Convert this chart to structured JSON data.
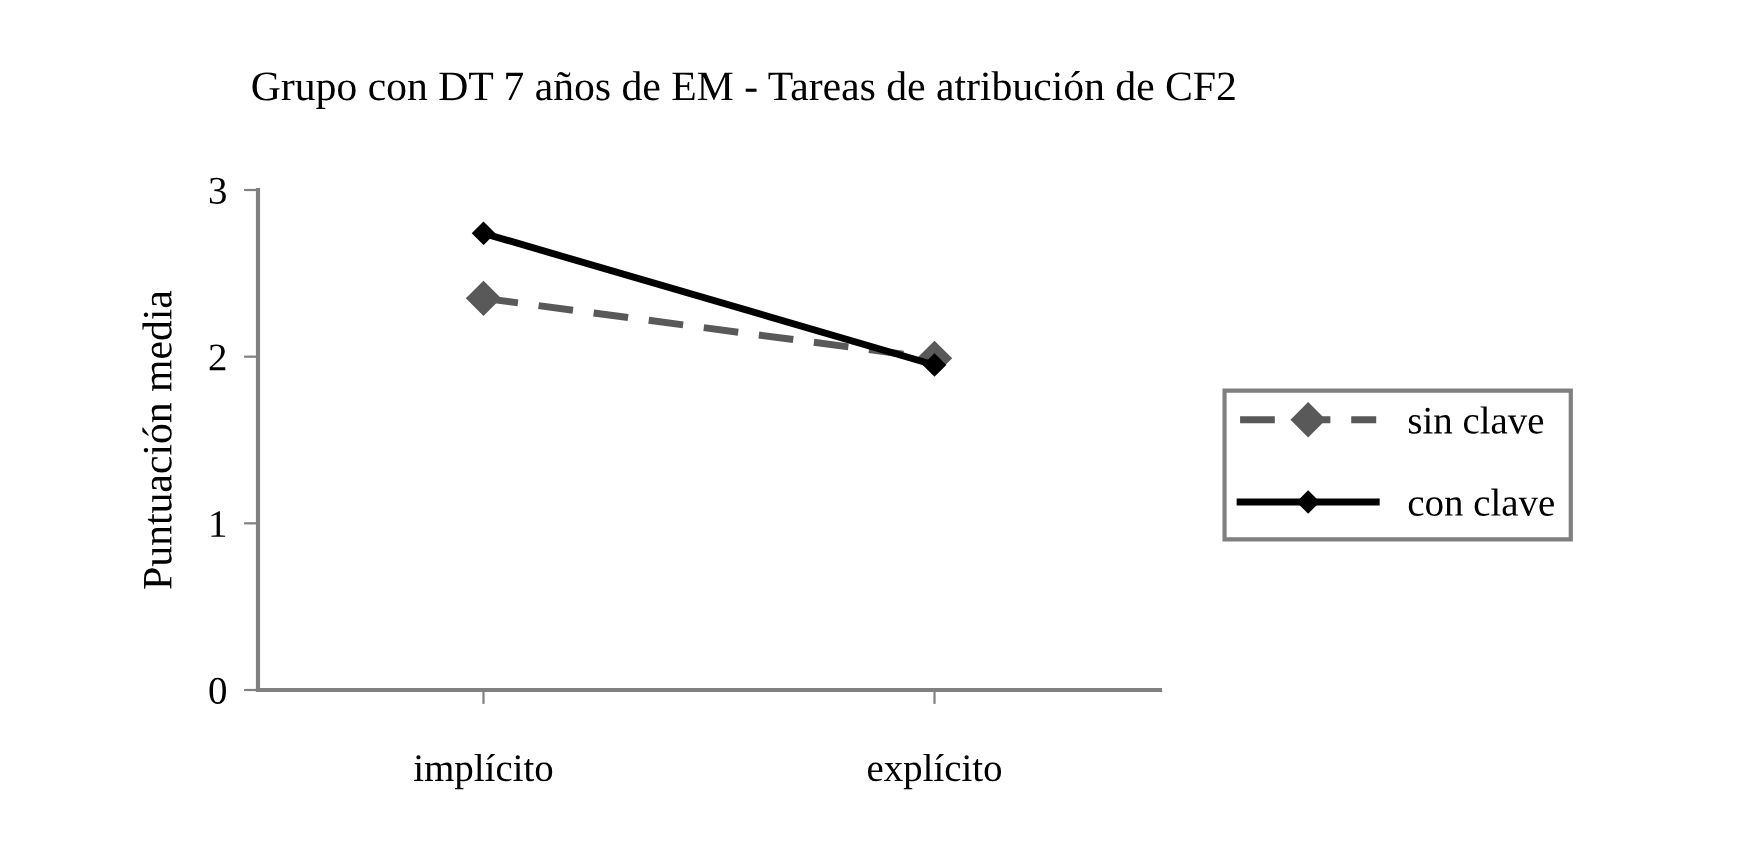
{
  "chart_data": {
    "type": "line",
    "title": "Grupo con DT 7 años de EM - Tareas de atribución de CF2",
    "ylabel": "Puntuación media",
    "categories": [
      "implícito",
      "explícito"
    ],
    "series": [
      {
        "name": "sin clave",
        "color": "#595959",
        "values": [
          2.35,
          1.99
        ],
        "line_style": "dashed"
      },
      {
        "name": "con clave",
        "color": "#000000",
        "values": [
          2.74,
          1.95
        ],
        "line_style": "solid"
      }
    ],
    "ylim": [
      0,
      3
    ],
    "yticks": [
      0,
      1,
      2,
      3
    ],
    "grid": false,
    "legend": "right",
    "marker": "diamond"
  }
}
